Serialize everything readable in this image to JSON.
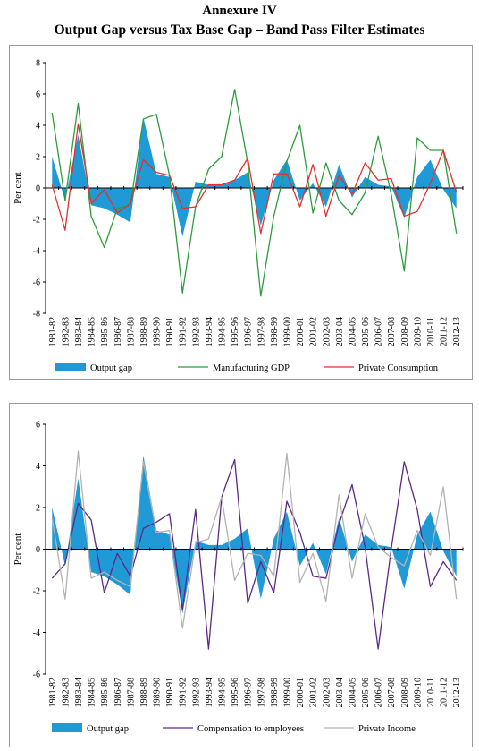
{
  "title_line1": "Annexure IV",
  "title_line2": "Output Gap versus Tax Base Gap – Band Pass Filter Estimates",
  "chart_data": [
    {
      "type": "line",
      "ylabel": "Per cent",
      "ylim": [
        -8,
        8
      ],
      "yticks": [
        -8,
        -6,
        -4,
        -2,
        0,
        2,
        4,
        6,
        8
      ],
      "legend_position": "bottom",
      "categories": [
        "1981-82",
        "1982-83",
        "1983-84",
        "1984-85",
        "1985-86",
        "1986-87",
        "1987-88",
        "1988-89",
        "1989-90",
        "1990-91",
        "1991-92",
        "1992-93",
        "1993-94",
        "1994-95",
        "1995-96",
        "1996-97",
        "1997-98",
        "1998-99",
        "1999-00",
        "2000-01",
        "2001-02",
        "2002-03",
        "2003-04",
        "2004-05",
        "2005-06",
        "2006-07",
        "2007-08",
        "2008-09",
        "2009-10",
        "2010-11",
        "2011-12",
        "2012-13"
      ],
      "series": [
        {
          "name": "Output gap",
          "kind": "area",
          "color": "#1f9ad6",
          "values": [
            2.0,
            -0.8,
            3.4,
            -1.1,
            -1.3,
            -1.7,
            -2.2,
            4.5,
            0.9,
            0.7,
            -3.1,
            0.4,
            0.2,
            0.2,
            0.5,
            1.0,
            -2.4,
            0.5,
            1.8,
            -0.8,
            0.3,
            -1.2,
            1.5,
            -0.6,
            0.7,
            0.2,
            0.1,
            -1.9,
            0.7,
            1.8,
            -0.1,
            -1.3
          ]
        },
        {
          "name": "Manufacturing GDP",
          "kind": "line",
          "color": "#2e9c3c",
          "values": [
            4.8,
            -0.8,
            5.4,
            -1.8,
            -3.8,
            -1.3,
            -1.1,
            4.4,
            4.7,
            0.8,
            -6.7,
            -1.2,
            1.2,
            2.0,
            6.3,
            1.6,
            -6.9,
            -1.8,
            1.7,
            4.0,
            -1.6,
            1.6,
            -0.8,
            -1.7,
            -0.3,
            3.3,
            -0.4,
            -5.3,
            3.2,
            2.4,
            2.4,
            -2.9
          ]
        },
        {
          "name": "Private Consumption",
          "kind": "line",
          "color": "#e0322e",
          "values": [
            0.2,
            -2.7,
            4.1,
            -1.0,
            -0.1,
            -1.6,
            -1.0,
            1.8,
            1.0,
            0.8,
            -1.3,
            -1.2,
            0.2,
            0.2,
            0.5,
            1.9,
            -2.9,
            0.9,
            0.9,
            -1.2,
            1.5,
            -1.8,
            0.8,
            -0.4,
            1.6,
            0.5,
            0.6,
            -1.8,
            -1.5,
            0.3,
            2.4,
            -0.3
          ]
        }
      ]
    },
    {
      "type": "line",
      "ylabel": "Per cent",
      "ylim": [
        -6,
        6
      ],
      "yticks": [
        -6,
        -4,
        -2,
        0,
        2,
        4,
        6
      ],
      "legend_position": "bottom",
      "categories": [
        "1981-82",
        "1982-83",
        "1983-84",
        "1984-85",
        "1985-86",
        "1986-87",
        "1987-88",
        "1988-89",
        "1989-90",
        "1990-91",
        "1991-92",
        "1992-93",
        "1993-94",
        "1994-95",
        "1995-96",
        "1996-97",
        "1997-98",
        "1998-99",
        "1999-00",
        "2000-01",
        "2001-02",
        "2002-03",
        "2003-04",
        "2004-05",
        "2005-06",
        "2006-07",
        "2007-08",
        "2008-09",
        "2009-10",
        "2010-11",
        "2011-12",
        "2012-13"
      ],
      "series": [
        {
          "name": "Output gap",
          "kind": "area",
          "color": "#1f9ad6",
          "values": [
            2.0,
            -0.8,
            3.4,
            -1.1,
            -1.3,
            -1.7,
            -2.2,
            4.5,
            0.9,
            0.7,
            -3.1,
            0.4,
            0.2,
            0.2,
            0.5,
            1.0,
            -2.4,
            0.5,
            1.8,
            -0.8,
            0.3,
            -1.2,
            1.5,
            -0.6,
            0.7,
            0.2,
            0.1,
            -1.9,
            0.7,
            1.8,
            -0.1,
            -1.3
          ]
        },
        {
          "name": "Compensation to employees",
          "kind": "line",
          "color": "#5b2a86",
          "values": [
            -1.4,
            -0.7,
            2.2,
            1.4,
            -2.1,
            -0.2,
            -1.3,
            1.0,
            1.3,
            1.7,
            -2.9,
            1.9,
            -4.8,
            2.5,
            4.3,
            -2.6,
            -0.6,
            -2.1,
            2.3,
            0.8,
            -1.3,
            -1.4,
            1.2,
            3.1,
            0.1,
            -4.8,
            0.0,
            4.2,
            1.9,
            -1.8,
            -0.6,
            -1.5
          ]
        },
        {
          "name": "Private Income",
          "kind": "line",
          "color": "#b3b3b3",
          "values": [
            1.5,
            -2.4,
            4.7,
            -1.4,
            -1.1,
            -1.5,
            -1.8,
            4.2,
            0.8,
            0.9,
            -3.8,
            0.3,
            0.5,
            2.5,
            -1.5,
            -0.2,
            -0.3,
            -1.3,
            4.6,
            -1.6,
            -0.2,
            -2.5,
            2.6,
            -1.4,
            1.7,
            0.1,
            -0.4,
            -0.8,
            0.9,
            -0.3,
            3.0,
            -2.4
          ]
        }
      ]
    }
  ]
}
